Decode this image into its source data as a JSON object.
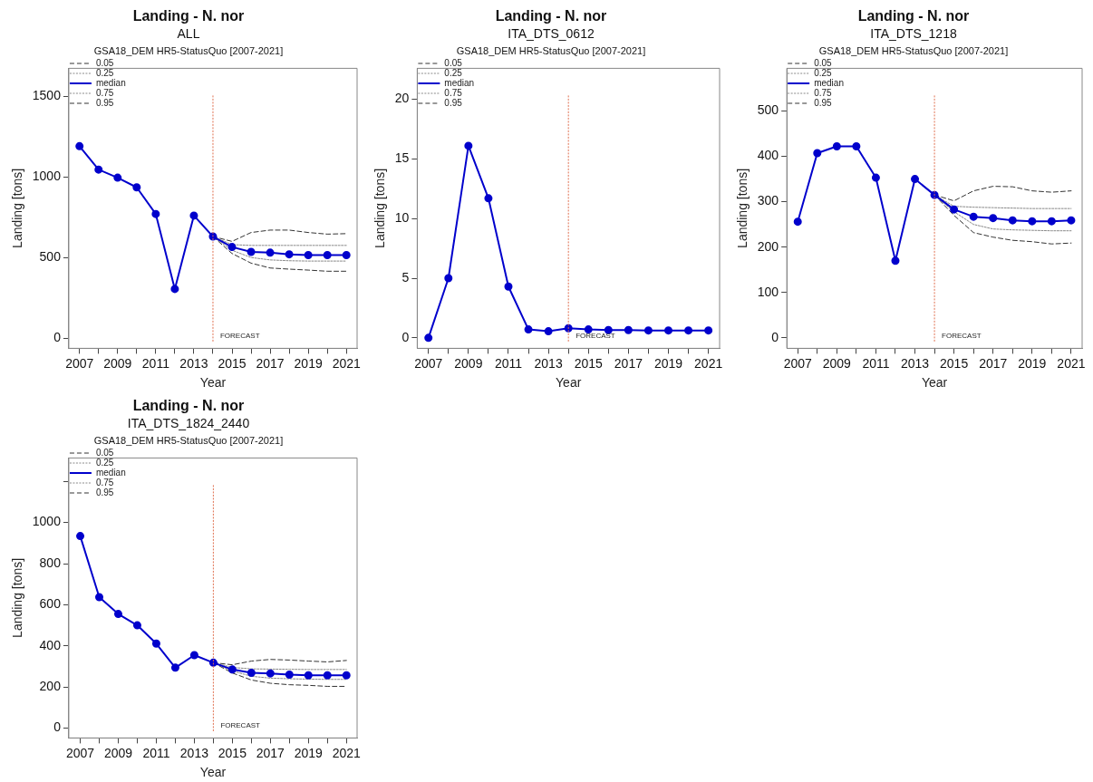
{
  "chart_data": [
    {
      "type": "line",
      "title": "Landing - N. nor",
      "subtitle": "ALL",
      "annotations": [
        "GSA18_DEM HR5-StatusQuo [2007-2021]"
      ],
      "xlabel": "Year",
      "ylabel": "Landing [tons]",
      "legend": "top left",
      "grid": false,
      "x": [
        2007,
        2008,
        2009,
        2010,
        2011,
        2012,
        2013,
        2014,
        2015,
        2016,
        2017,
        2018,
        2019,
        2020,
        2021
      ],
      "xlim": [
        2006.44,
        2021.56
      ],
      "xticks": [
        2007,
        {
          "value": 2008,
          "label": null
        },
        2009,
        {
          "value": 2010,
          "label": null
        },
        2011,
        {
          "value": 2012,
          "label": null
        },
        2013,
        {
          "value": 2014,
          "label": null
        },
        2015,
        {
          "value": 2016,
          "label": null
        },
        2017,
        {
          "value": 2018,
          "label": null
        },
        2019,
        {
          "value": 2020,
          "label": null
        },
        2021
      ],
      "ylim": [
        -63,
        1673
      ],
      "yticks": [
        0,
        500,
        1000,
        1500
      ],
      "ref_lines": [
        {
          "axis": "x",
          "value": 2014,
          "label": "FORECAST",
          "color": "#e07050",
          "line_style": "dotted"
        }
      ],
      "series": [
        {
          "name": "0.05",
          "color": "#333333",
          "line_style": "dashed",
          "marker": "none",
          "x": [
            2014,
            2015,
            2016,
            2017,
            2018,
            2019,
            2020,
            2021
          ],
          "values": [
            630,
            525,
            465,
            435,
            428,
            422,
            415,
            415
          ]
        },
        {
          "name": "0.25",
          "color": "#888888",
          "line_style": "dotted",
          "marker": "none",
          "x": [
            2014,
            2015,
            2016,
            2017,
            2018,
            2019,
            2020,
            2021
          ],
          "values": [
            630,
            545,
            500,
            485,
            480,
            478,
            478,
            478
          ]
        },
        {
          "name": "median",
          "color": "#0000cc",
          "line_style": "solid",
          "marker": "circle",
          "values": [
            1190,
            1045,
            995,
            935,
            770,
            305,
            760,
            630,
            565,
            535,
            530,
            520,
            515,
            515,
            515
          ]
        },
        {
          "name": "0.75",
          "color": "#888888",
          "line_style": "dotted",
          "marker": "none",
          "x": [
            2014,
            2015,
            2016,
            2017,
            2018,
            2019,
            2020,
            2021
          ],
          "values": [
            630,
            580,
            575,
            575,
            575,
            575,
            575,
            575
          ]
        },
        {
          "name": "0.95",
          "color": "#333333",
          "line_style": "dashed",
          "marker": "none",
          "x": [
            2014,
            2015,
            2016,
            2017,
            2018,
            2019,
            2020,
            2021
          ],
          "values": [
            630,
            600,
            655,
            670,
            670,
            655,
            645,
            648
          ]
        }
      ]
    },
    {
      "type": "line",
      "title": "Landing - N. nor",
      "subtitle": "ITA_DTS_0612",
      "annotations": [
        "GSA18_DEM HR5-StatusQuo [2007-2021]"
      ],
      "xlabel": "Year",
      "ylabel": "Landing [tons]",
      "legend": "top left",
      "grid": false,
      "x": [
        2007,
        2008,
        2009,
        2010,
        2011,
        2012,
        2013,
        2014,
        2015,
        2016,
        2017,
        2018,
        2019,
        2020,
        2021
      ],
      "xlim": [
        2006.44,
        2021.56
      ],
      "xticks": [
        2007,
        {
          "value": 2008,
          "label": null
        },
        2009,
        {
          "value": 2010,
          "label": null
        },
        2011,
        {
          "value": 2012,
          "label": null
        },
        2013,
        {
          "value": 2014,
          "label": null
        },
        2015,
        {
          "value": 2016,
          "label": null
        },
        2017,
        {
          "value": 2018,
          "label": null
        },
        2019,
        {
          "value": 2020,
          "label": null
        },
        2021
      ],
      "ylim": [
        -0.88,
        22.6
      ],
      "yticks": [
        0,
        5,
        10,
        15,
        20
      ],
      "ref_lines": [
        {
          "axis": "x",
          "value": 2014,
          "label": "FORECAST",
          "color": "#e07050",
          "line_style": "dotted"
        }
      ],
      "series": [
        {
          "name": "0.05",
          "color": "#333333",
          "line_style": "dashed",
          "marker": "none",
          "values": [
            null,
            null,
            null,
            null,
            null,
            null,
            null,
            null,
            null,
            null,
            null,
            null,
            null,
            null,
            null
          ]
        },
        {
          "name": "0.25",
          "color": "#888888",
          "line_style": "dotted",
          "marker": "none",
          "values": [
            null,
            null,
            null,
            null,
            null,
            null,
            null,
            null,
            null,
            null,
            null,
            null,
            null,
            null,
            null
          ]
        },
        {
          "name": "median",
          "color": "#0000cc",
          "line_style": "solid",
          "marker": "circle",
          "values": [
            0,
            5,
            16.1,
            11.7,
            4.3,
            0.7,
            0.55,
            0.8,
            0.7,
            0.65,
            0.65,
            0.62,
            0.62,
            0.62,
            0.62
          ]
        },
        {
          "name": "0.75",
          "color": "#888888",
          "line_style": "dotted",
          "marker": "none",
          "values": [
            null,
            null,
            null,
            null,
            null,
            null,
            null,
            null,
            null,
            null,
            null,
            null,
            null,
            null,
            null
          ]
        },
        {
          "name": "0.95",
          "color": "#333333",
          "line_style": "dashed",
          "marker": "none",
          "values": [
            null,
            null,
            null,
            null,
            null,
            null,
            null,
            null,
            null,
            null,
            null,
            null,
            null,
            null,
            null
          ]
        }
      ]
    },
    {
      "type": "line",
      "title": "Landing - N. nor",
      "subtitle": "ITA_DTS_1218",
      "annotations": [
        "GSA18_DEM HR5-StatusQuo [2007-2021]"
      ],
      "xlabel": "Year",
      "ylabel": "Landing [tons]",
      "legend": "top left",
      "grid": false,
      "x": [
        2007,
        2008,
        2009,
        2010,
        2011,
        2012,
        2013,
        2014,
        2015,
        2016,
        2017,
        2018,
        2019,
        2020,
        2021
      ],
      "xlim": [
        2006.44,
        2021.56
      ],
      "xticks": [
        2007,
        {
          "value": 2008,
          "label": null
        },
        2009,
        {
          "value": 2010,
          "label": null
        },
        2011,
        {
          "value": 2012,
          "label": null
        },
        2013,
        {
          "value": 2014,
          "label": null
        },
        2015,
        {
          "value": 2016,
          "label": null
        },
        2017,
        {
          "value": 2018,
          "label": null
        },
        2019,
        {
          "value": 2020,
          "label": null
        },
        2021
      ],
      "ylim": [
        -23,
        594
      ],
      "yticks": [
        0,
        100,
        200,
        300,
        400,
        500
      ],
      "ref_lines": [
        {
          "axis": "x",
          "value": 2014,
          "label": "FORECAST",
          "color": "#e07050",
          "line_style": "dotted"
        }
      ],
      "series": [
        {
          "name": "0.05",
          "color": "#333333",
          "line_style": "dashed",
          "marker": "none",
          "x": [
            2014,
            2015,
            2016,
            2017,
            2018,
            2019,
            2020,
            2021
          ],
          "values": [
            315,
            270,
            232,
            222,
            215,
            212,
            207,
            209
          ]
        },
        {
          "name": "0.25",
          "color": "#888888",
          "line_style": "dotted",
          "marker": "none",
          "x": [
            2014,
            2015,
            2016,
            2017,
            2018,
            2019,
            2020,
            2021
          ],
          "values": [
            315,
            278,
            250,
            240,
            238,
            237,
            236,
            236
          ]
        },
        {
          "name": "median",
          "color": "#0000cc",
          "line_style": "solid",
          "marker": "circle",
          "values": [
            256,
            407,
            422,
            422,
            353,
            170,
            350,
            315,
            283,
            267,
            264,
            259,
            257,
            257,
            259
          ]
        },
        {
          "name": "0.75",
          "color": "#888888",
          "line_style": "dotted",
          "marker": "none",
          "x": [
            2014,
            2015,
            2016,
            2017,
            2018,
            2019,
            2020,
            2021
          ],
          "values": [
            315,
            290,
            288,
            287,
            286,
            285,
            285,
            285
          ]
        },
        {
          "name": "0.95",
          "color": "#333333",
          "line_style": "dashed",
          "marker": "none",
          "x": [
            2014,
            2015,
            2016,
            2017,
            2018,
            2019,
            2020,
            2021
          ],
          "values": [
            315,
            302,
            324,
            334,
            333,
            324,
            321,
            324
          ]
        }
      ]
    },
    {
      "type": "line",
      "title": "Landing - N. nor",
      "subtitle": "ITA_DTS_1824_2440",
      "annotations": [
        "GSA18_DEM HR5-StatusQuo [2007-2021]"
      ],
      "xlabel": "Year",
      "ylabel": "Landing [tons]",
      "legend": "top left",
      "grid": false,
      "x": [
        2007,
        2008,
        2009,
        2010,
        2011,
        2012,
        2013,
        2014,
        2015,
        2016,
        2017,
        2018,
        2019,
        2020,
        2021
      ],
      "xlim": [
        2006.4,
        2021.56
      ],
      "xticks": [
        2007,
        {
          "value": 2008,
          "label": null
        },
        2009,
        {
          "value": 2010,
          "label": null
        },
        2011,
        {
          "value": 2012,
          "label": null
        },
        2013,
        {
          "value": 2014,
          "label": null
        },
        2015,
        {
          "value": 2016,
          "label": null
        },
        2017,
        {
          "value": 2018,
          "label": null
        },
        2019,
        {
          "value": 2020,
          "label": null
        },
        2021
      ],
      "ylim": [
        -48,
        1314
      ],
      "yticks": [
        0,
        200,
        400,
        600,
        800,
        1000,
        {
          "value": 1200,
          "label": null
        }
      ],
      "ref_lines": [
        {
          "axis": "x",
          "value": 2014,
          "label": "FORECAST",
          "color": "#e07050",
          "line_style": "dotted"
        }
      ],
      "series": [
        {
          "name": "0.05",
          "color": "#333333",
          "line_style": "dashed",
          "marker": "none",
          "x": [
            2014,
            2015,
            2016,
            2017,
            2018,
            2019,
            2020,
            2021
          ],
          "values": [
            318,
            268,
            234,
            218,
            211,
            208,
            203,
            203
          ]
        },
        {
          "name": "0.25",
          "color": "#888888",
          "line_style": "dotted",
          "marker": "none",
          "x": [
            2014,
            2015,
            2016,
            2017,
            2018,
            2019,
            2020,
            2021
          ],
          "values": [
            318,
            278,
            252,
            243,
            240,
            238,
            237,
            237
          ]
        },
        {
          "name": "median",
          "color": "#0000cc",
          "line_style": "solid",
          "marker": "circle",
          "values": [
            934,
            637,
            555,
            500,
            411,
            294,
            355,
            318,
            285,
            269,
            266,
            260,
            257,
            257,
            257
          ]
        },
        {
          "name": "0.75",
          "color": "#888888",
          "line_style": "dotted",
          "marker": "none",
          "x": [
            2014,
            2015,
            2016,
            2017,
            2018,
            2019,
            2020,
            2021
          ],
          "values": [
            318,
            295,
            288,
            287,
            286,
            285,
            285,
            285
          ]
        },
        {
          "name": "0.95",
          "color": "#333333",
          "line_style": "dashed",
          "marker": "none",
          "x": [
            2014,
            2015,
            2016,
            2017,
            2018,
            2019,
            2020,
            2021
          ],
          "values": [
            318,
            308,
            326,
            334,
            331,
            326,
            322,
            329
          ]
        }
      ]
    }
  ]
}
